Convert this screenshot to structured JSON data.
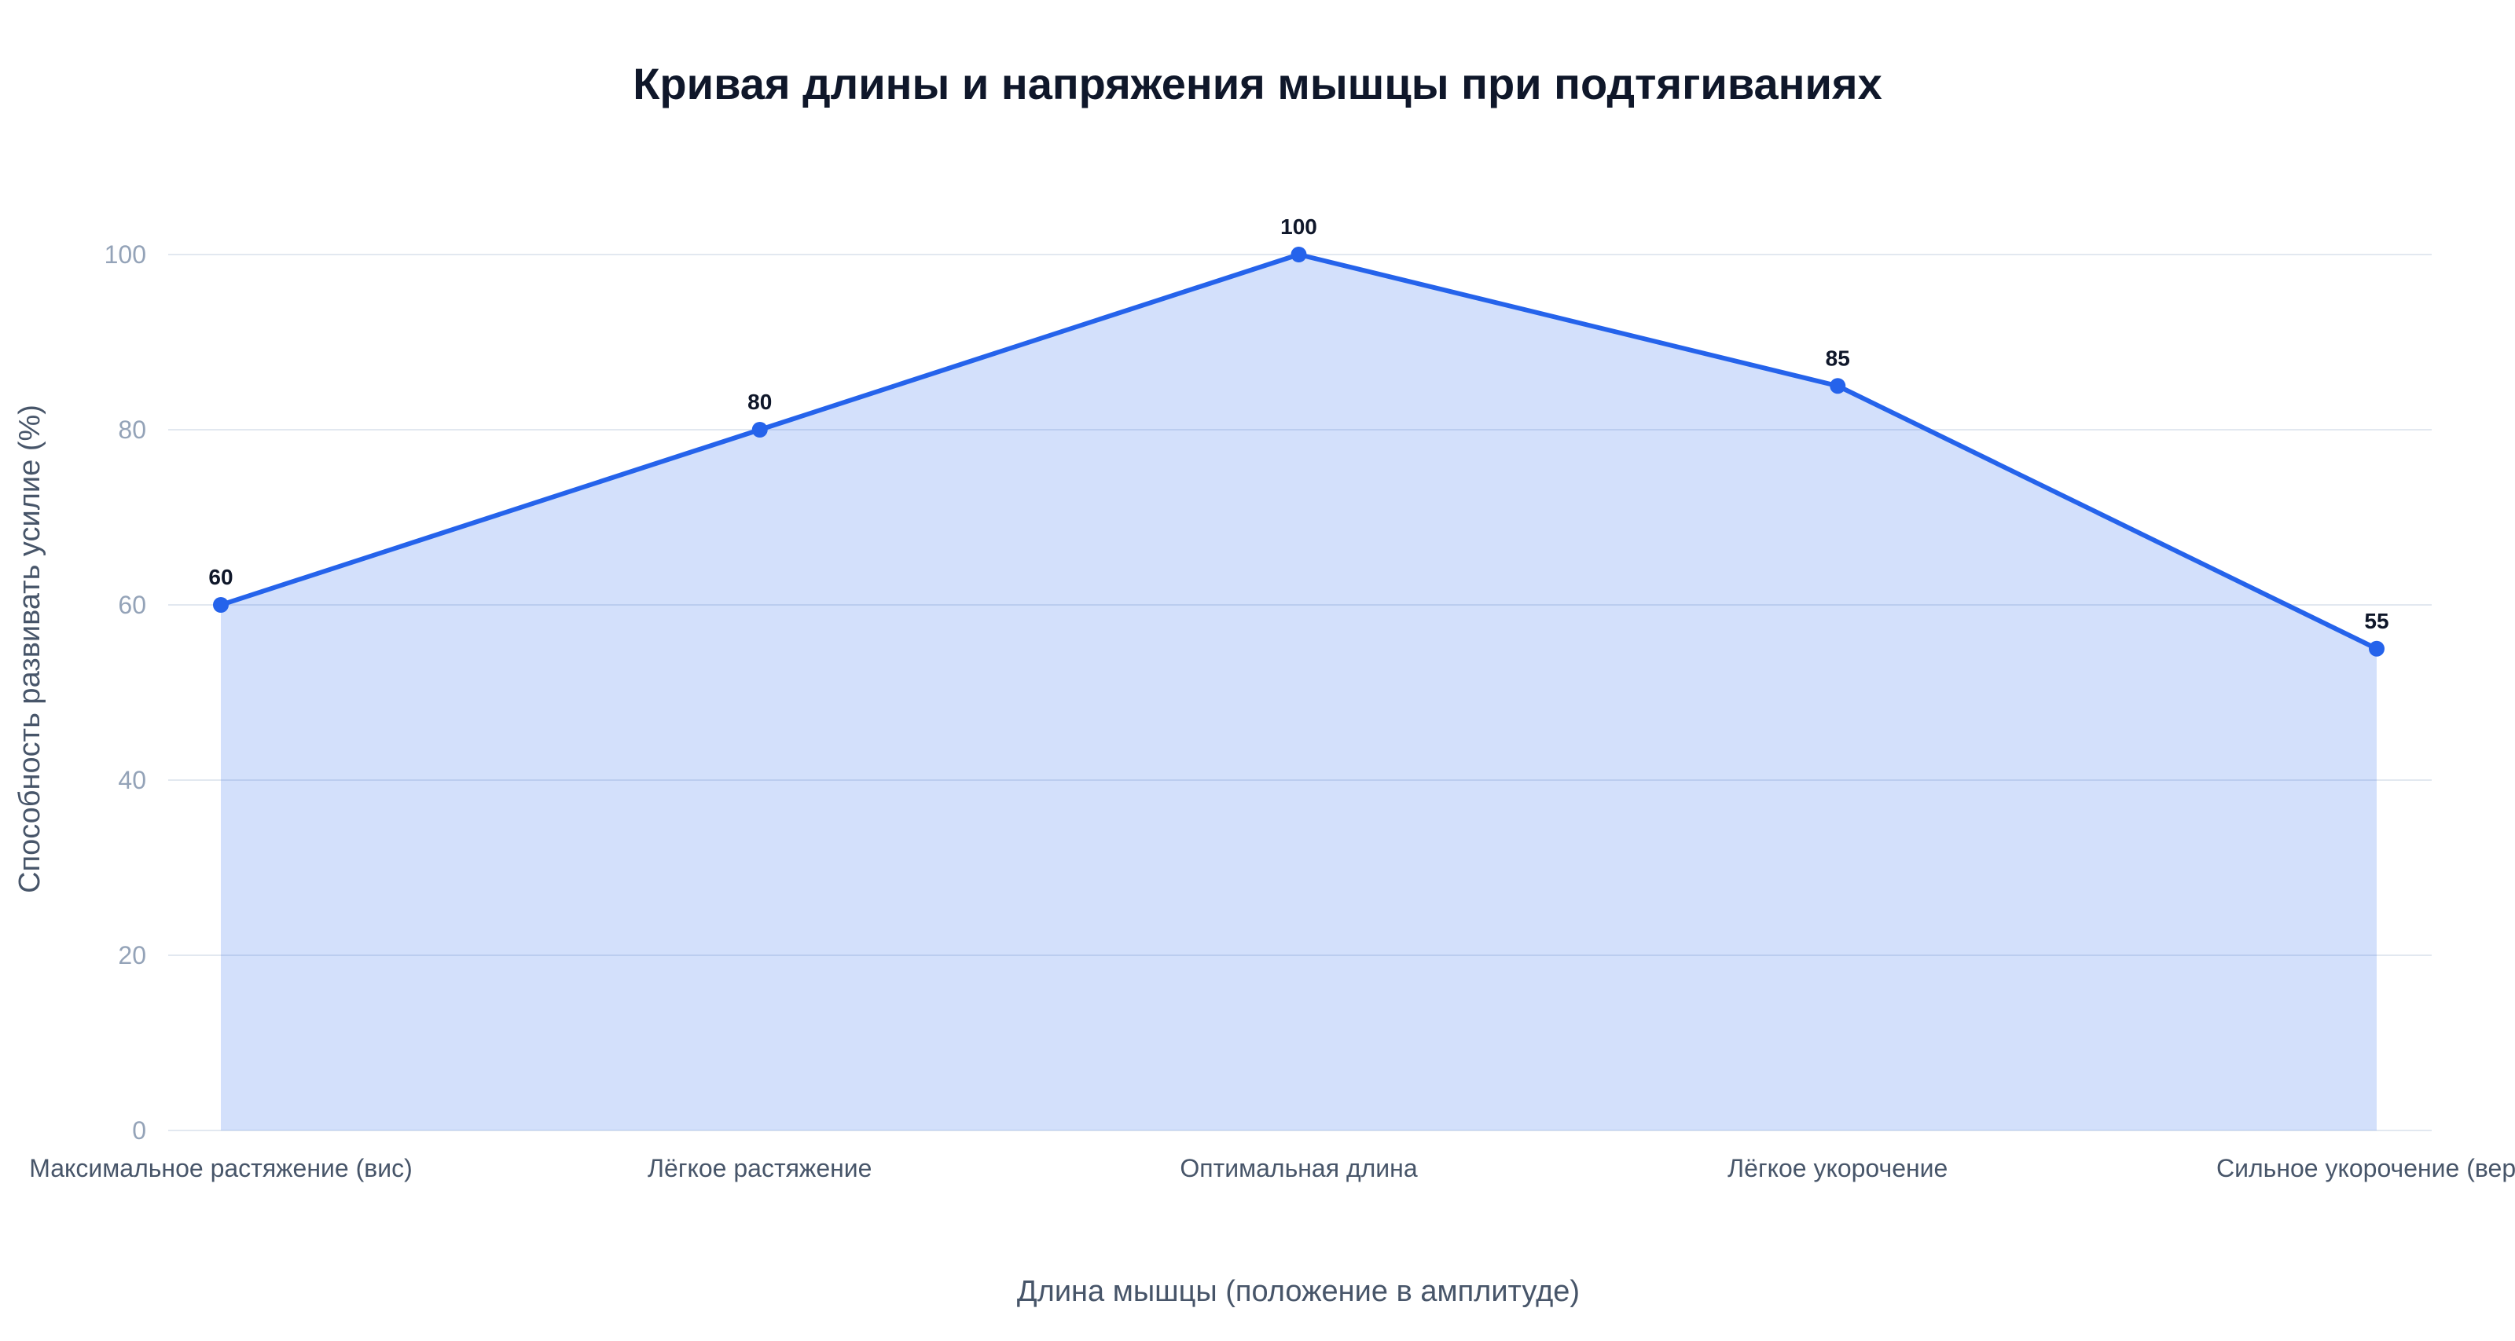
{
  "chart_data": {
    "type": "area",
    "title": "Кривая длины и напряжения мышцы при подтягиваниях",
    "xlabel": "Длина мышцы (положение в амплитуде)",
    "ylabel": "Способность развивать усилие (%)",
    "categories": [
      "Максимальное растяжение (вис)",
      "Лёгкое растяжение",
      "Оптимальная длина",
      "Лёгкое укорочение",
      "Сильное укорочение (верх)"
    ],
    "series": [
      {
        "values": [
          60,
          80,
          100,
          85,
          55
        ]
      }
    ],
    "ylim": [
      0,
      100
    ],
    "yticks": [
      0,
      20,
      40,
      60,
      80,
      100
    ],
    "grid": true,
    "data_labels": true,
    "legend": "none",
    "colors": {
      "line": "#2563eb",
      "fill": "#2563eb",
      "fill_opacity": 0.2,
      "grid": "#e2e8f0",
      "tick_y": "#94a3b8",
      "tick_x": "#475569",
      "title": "#0f172a"
    }
  }
}
